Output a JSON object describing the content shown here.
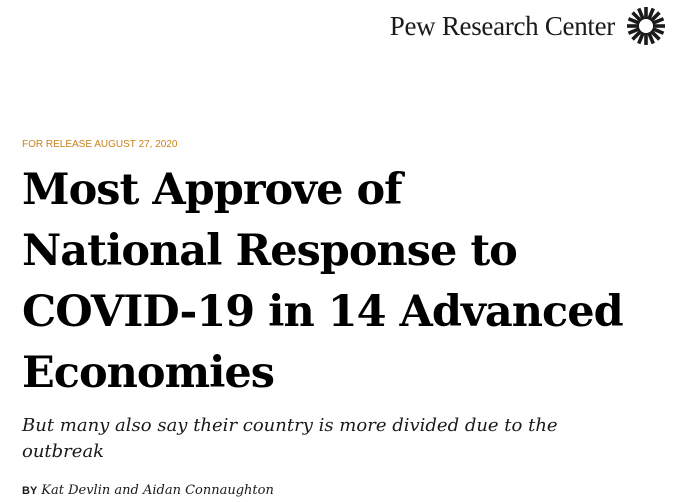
{
  "masthead": {
    "brand_name": "Pew Research Center",
    "logo_icon": "pew-sunburst-logo-icon"
  },
  "article": {
    "release": "FOR RELEASE AUGUST 27, 2020",
    "title_lines": [
      "Most Approve of",
      "National Response to",
      "COVID-19 in 14 Advanced",
      "Economies"
    ],
    "subtitle": "But many also say their country is more divided due to the outbreak",
    "byline_prefix": "BY",
    "authors": "Kat Devlin and Aidan Connaughton"
  },
  "colors": {
    "release_accent": "#c8821b",
    "headline": "#000000",
    "background": "#ffffff"
  }
}
